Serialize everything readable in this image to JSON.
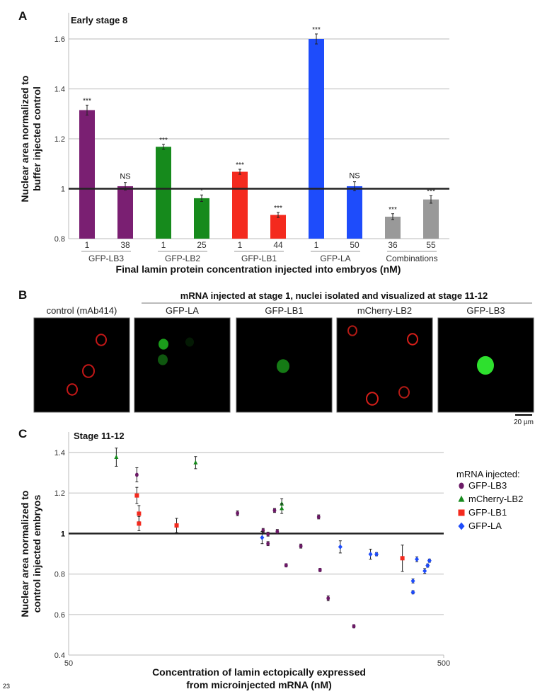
{
  "panel_labels": {
    "a": "A",
    "b": "B",
    "c": "C"
  },
  "page_number": "23",
  "chart_data": [
    {
      "type": "bar",
      "title": "Early stage 8",
      "ylabel_line1": "Nuclear area normalized to",
      "ylabel_line2": "buffer injected control",
      "xlabel": "Final lamin protein concentration injected into embryos (nM)",
      "ylim": [
        0.8,
        1.6
      ],
      "yticks": [
        "0.8",
        "1",
        "1.2",
        "1.4",
        "1.6"
      ],
      "reference_line": 1,
      "grid": true,
      "categories": [
        "1",
        "38",
        "1",
        "25",
        "1",
        "44",
        "1",
        "50",
        "36",
        "55"
      ],
      "groups": [
        {
          "label": "GFP-LB3",
          "color": "#7a1f72"
        },
        {
          "label": "GFP-LB2",
          "color": "#168a1c"
        },
        {
          "label": "GFP-LB1",
          "color": "#f42a1e"
        },
        {
          "label": "GFP-LA",
          "color": "#1e4cfb"
        },
        {
          "label": "Combinations",
          "color": "#999999"
        }
      ],
      "values": [
        1.315,
        1.01,
        1.168,
        0.962,
        1.068,
        0.895,
        1.6,
        1.01,
        0.888,
        0.957
      ],
      "errors": [
        0.02,
        0.015,
        0.01,
        0.013,
        0.01,
        0.01,
        0.02,
        0.018,
        0.012,
        0.015
      ],
      "significance": [
        "***",
        "NS",
        "***",
        "*",
        "***",
        "***",
        "***",
        "NS",
        "***",
        "***"
      ]
    },
    {
      "type": "scatter",
      "title": "Stage 11-12",
      "ylabel_line1": "Nuclear area normalized to",
      "ylabel_line2": "control injected embryos",
      "xlabel_line1": "Concentration of lamin ectopically expressed",
      "xlabel_line2": "from microinjected mRNA (nM)",
      "xscale": "log",
      "xlim": [
        50,
        500
      ],
      "xticks": [
        "50",
        "500"
      ],
      "ylim": [
        0.4,
        1.4
      ],
      "yticks": [
        "0.4",
        "0.6",
        "0.8",
        "1",
        "1.2",
        "1.4"
      ],
      "reference_line": 1,
      "grid": true,
      "legend_title": "mRNA injected:",
      "legend_position": "right",
      "series": [
        {
          "name": "GFP-LB3",
          "marker": "circle",
          "color": "#6b1a66",
          "points": [
            [
              76,
              1.29,
              0.035
            ],
            [
              141,
              1.1,
              0.012
            ],
            [
              165,
              1.015,
              0.01
            ],
            [
              170,
              0.997,
              0.01
            ],
            [
              170,
              0.95,
              0.01
            ],
            [
              177,
              1.114,
              0.01
            ],
            [
              180,
              1.01,
              0.01
            ],
            [
              190,
              0.843,
              0.008
            ],
            [
              208,
              0.938,
              0.01
            ],
            [
              232,
              1.082,
              0.01
            ],
            [
              234,
              0.82,
              0.008
            ],
            [
              246,
              0.68,
              0.012
            ],
            [
              288,
              0.542,
              0.008
            ]
          ]
        },
        {
          "name": "mCherry-LB2",
          "marker": "triangle",
          "color": "#168a1c",
          "points": [
            [
              67,
              1.377,
              0.045
            ],
            [
              109,
              1.35,
              0.03
            ],
            [
              185,
              1.147,
              0.025
            ],
            [
              185,
              1.124,
              0.025
            ]
          ]
        },
        {
          "name": "GFP-LB1",
          "marker": "square",
          "color": "#f42a1e",
          "points": [
            [
              76,
              1.188,
              0.04
            ],
            [
              77,
              1.098,
              0.04
            ],
            [
              77,
              1.049,
              0.035
            ],
            [
              97,
              1.04,
              0.035
            ],
            [
              388,
              0.878,
              0.065
            ]
          ]
        },
        {
          "name": "GFP-LA",
          "marker": "diamond",
          "color": "#1e4cfb",
          "points": [
            [
              164,
              0.98,
              0.03
            ],
            [
              265,
              0.934,
              0.03
            ],
            [
              319,
              0.898,
              0.025
            ],
            [
              331,
              0.898,
              0.008
            ],
            [
              414,
              0.766,
              0.01
            ],
            [
              414,
              0.71,
              0.008
            ],
            [
              424,
              0.873,
              0.012
            ],
            [
              445,
              0.815,
              0.012
            ],
            [
              453,
              0.842,
              0.008
            ],
            [
              458,
              0.866,
              0.008
            ]
          ]
        }
      ]
    }
  ],
  "panel_b": {
    "title": "mRNA injected at stage 1, nuclei isolated and visualized at stage 11-12",
    "images": [
      {
        "label": "control (mAb414)",
        "channel_color": "#d81a1a"
      },
      {
        "label": "GFP-LA",
        "channel_color": "#1fae1f"
      },
      {
        "label": "GFP-LB1",
        "channel_color": "#1fae1f"
      },
      {
        "label": "mCherry-LB2",
        "channel_color": "#e0201a"
      },
      {
        "label": "GFP-LB3",
        "channel_color": "#2ee02e"
      }
    ],
    "scale_bar": "20 µm"
  }
}
